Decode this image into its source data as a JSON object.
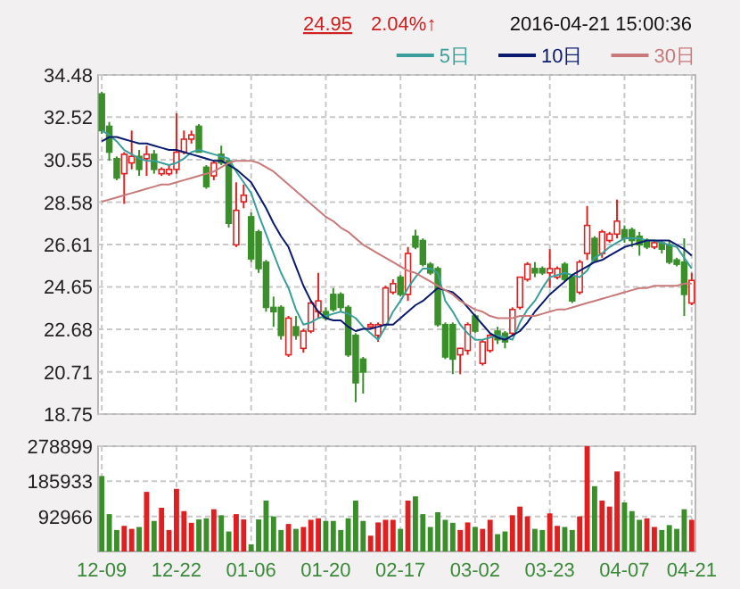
{
  "chart_data": [
    {
      "type": "candlestick",
      "annotations": [
        "24.95",
        "2.04%↑",
        "2016-04-21 15:00:36"
      ],
      "categories": [
        null,
        null,
        null,
        null,
        null,
        null,
        null,
        null,
        null,
        null,
        null,
        null,
        null,
        null,
        null,
        null,
        null,
        null,
        null,
        null,
        null,
        null,
        null,
        null,
        null,
        null,
        null,
        null,
        null,
        null,
        null,
        null,
        null,
        null,
        null,
        null,
        null,
        null,
        null,
        null,
        null,
        null,
        null,
        null,
        null,
        null,
        null,
        null,
        null,
        null,
        null,
        null,
        null,
        null,
        null,
        null,
        null,
        null,
        null,
        null,
        null,
        null,
        null,
        null,
        null,
        null,
        null,
        null,
        null,
        null,
        null,
        null,
        null,
        null,
        null,
        null,
        null,
        null,
        null,
        null
      ],
      "ohlc": [
        [
          33.6,
          33.7,
          31.75,
          31.9
        ],
        [
          32.1,
          32.3,
          30.5,
          30.9
        ],
        [
          30.6,
          30.7,
          29.6,
          29.7
        ],
        [
          29.9,
          30.9,
          28.5,
          30.8
        ],
        [
          30.4,
          31.9,
          30.1,
          30.7
        ],
        [
          30.7,
          31.0,
          29.8,
          30.1
        ],
        [
          30.6,
          31.2,
          29.8,
          30.8
        ],
        [
          30.8,
          31.0,
          29.9,
          30.1
        ],
        [
          29.9,
          30.2,
          29.8,
          30.1
        ],
        [
          29.9,
          30.3,
          29.8,
          30.1
        ],
        [
          30.1,
          32.7,
          29.9,
          30.9
        ],
        [
          30.9,
          31.9,
          30.8,
          31.5
        ],
        [
          31.5,
          31.9,
          31.3,
          31.7
        ],
        [
          32.1,
          32.2,
          30.9,
          30.9
        ],
        [
          30.2,
          30.3,
          29.2,
          29.3
        ],
        [
          29.8,
          30.5,
          29.6,
          30.4
        ],
        [
          30.8,
          31.2,
          30.3,
          30.4
        ],
        [
          30.5,
          30.6,
          27.4,
          27.6
        ],
        [
          26.6,
          29.5,
          26.5,
          28.2
        ],
        [
          28.6,
          29.4,
          28.3,
          28.9
        ],
        [
          27.9,
          28.1,
          25.8,
          25.95
        ],
        [
          27.2,
          27.3,
          25.3,
          25.5
        ],
        [
          25.8,
          25.9,
          23.5,
          23.7
        ],
        [
          23.7,
          24.2,
          22.8,
          23.5
        ],
        [
          23.7,
          23.8,
          22.2,
          22.4
        ],
        [
          21.5,
          23.3,
          21.4,
          23.2
        ],
        [
          22.8,
          23.3,
          22.2,
          22.4
        ],
        [
          21.8,
          22.7,
          21.6,
          22.6
        ],
        [
          22.6,
          24.0,
          22.5,
          23.9
        ],
        [
          23.5,
          25.3,
          23.2,
          24.0
        ],
        [
          23.5,
          23.7,
          23.1,
          23.2
        ],
        [
          24.3,
          24.6,
          23.5,
          23.6
        ],
        [
          24.3,
          24.4,
          23.5,
          23.7
        ],
        [
          23.7,
          23.8,
          21.4,
          21.5
        ],
        [
          22.4,
          22.5,
          19.3,
          20.2
        ],
        [
          21.3,
          21.4,
          19.7,
          20.7
        ],
        [
          22.8,
          23.0,
          22.7,
          22.9
        ],
        [
          22.4,
          23.0,
          22.1,
          22.9
        ],
        [
          22.9,
          24.7,
          22.8,
          24.6
        ],
        [
          24.4,
          25.0,
          24.3,
          24.8
        ],
        [
          25.1,
          25.2,
          24.2,
          24.3
        ],
        [
          24.3,
          26.5,
          24.0,
          26.2
        ],
        [
          27.0,
          27.3,
          26.4,
          26.5
        ],
        [
          26.8,
          26.9,
          25.6,
          25.7
        ],
        [
          25.7,
          25.8,
          25.2,
          25.3
        ],
        [
          25.5,
          25.6,
          22.8,
          22.9
        ],
        [
          22.9,
          23.0,
          21.3,
          21.4
        ],
        [
          22.9,
          23.0,
          20.6,
          21.3
        ],
        [
          21.5,
          21.8,
          20.6,
          21.8
        ],
        [
          21.7,
          23.0,
          21.5,
          22.9
        ],
        [
          23.3,
          23.4,
          22.5,
          22.6
        ],
        [
          21.1,
          22.2,
          21.0,
          22.1
        ],
        [
          21.7,
          22.5,
          21.6,
          22.4
        ],
        [
          22.6,
          22.8,
          22.0,
          22.2
        ],
        [
          22.5,
          22.6,
          21.8,
          22.1
        ],
        [
          22.5,
          23.7,
          22.4,
          23.6
        ],
        [
          23.7,
          25.1,
          23.6,
          25.1
        ],
        [
          25.0,
          25.8,
          24.9,
          25.7
        ],
        [
          25.5,
          25.8,
          25.1,
          25.3
        ],
        [
          25.5,
          25.6,
          25.2,
          25.3
        ],
        [
          25.3,
          26.4,
          24.6,
          25.5
        ],
        [
          25.1,
          25.6,
          25.0,
          25.5
        ],
        [
          25.7,
          25.8,
          24.9,
          25.0
        ],
        [
          25.1,
          25.2,
          23.9,
          24.0
        ],
        [
          24.4,
          25.9,
          24.3,
          25.8
        ],
        [
          26.2,
          28.4,
          25.9,
          27.5
        ],
        [
          26.9,
          27.0,
          25.8,
          25.9
        ],
        [
          26.2,
          27.3,
          26.0,
          27.2
        ],
        [
          26.8,
          27.2,
          26.7,
          27.1
        ],
        [
          27.1,
          28.7,
          26.9,
          27.7
        ],
        [
          27.3,
          27.5,
          26.7,
          26.9
        ],
        [
          27.3,
          27.4,
          26.5,
          26.8
        ],
        [
          27.0,
          27.2,
          26.1,
          26.6
        ],
        [
          26.8,
          26.9,
          26.4,
          26.5
        ],
        [
          26.5,
          26.8,
          26.4,
          26.7
        ],
        [
          26.7,
          26.8,
          26.2,
          26.4
        ],
        [
          26.6,
          26.8,
          25.7,
          25.8
        ],
        [
          25.9,
          26.0,
          25.6,
          25.7
        ],
        [
          25.8,
          26.9,
          23.3,
          24.3
        ],
        [
          23.9,
          25.3,
          23.8,
          24.95
        ]
      ],
      "colors": [
        "#3a8f2a",
        "#3a8f2a",
        "#3a8f2a",
        "#e02020",
        "#e02020",
        "#3a8f2a",
        "#e02020",
        "#3a8f2a",
        "#e02020",
        "#e02020",
        "#e02020",
        "#e02020",
        "#e02020",
        "#3a8f2a",
        "#3a8f2a",
        "#e02020",
        "#3a8f2a",
        "#3a8f2a",
        "#e02020",
        "#e02020",
        "#3a8f2a",
        "#3a8f2a",
        "#3a8f2a",
        "#3a8f2a",
        "#3a8f2a",
        "#e02020",
        "#3a8f2a",
        "#e02020",
        "#e02020",
        "#e02020",
        "#3a8f2a",
        "#3a8f2a",
        "#3a8f2a",
        "#3a8f2a",
        "#3a8f2a",
        "#3a8f2a",
        "#e02020",
        "#e02020",
        "#e02020",
        "#e02020",
        "#3a8f2a",
        "#e02020",
        "#3a8f2a",
        "#3a8f2a",
        "#3a8f2a",
        "#3a8f2a",
        "#3a8f2a",
        "#3a8f2a",
        "#e02020",
        "#e02020",
        "#3a8f2a",
        "#e02020",
        "#e02020",
        "#3a8f2a",
        "#3a8f2a",
        "#e02020",
        "#e02020",
        "#e02020",
        "#3a8f2a",
        "#3a8f2a",
        "#e02020",
        "#e02020",
        "#3a8f2a",
        "#3a8f2a",
        "#e02020",
        "#e02020",
        "#3a8f2a",
        "#e02020",
        "#e02020",
        "#e02020",
        "#3a8f2a",
        "#3a8f2a",
        "#3a8f2a",
        "#3a8f2a",
        "#e02020",
        "#3a8f2a",
        "#3a8f2a",
        "#3a8f2a",
        "#3a8f2a",
        "#e02020"
      ],
      "series": [
        {
          "name": "5日",
          "type": "line",
          "color": "#3a9e9a",
          "values": [
            31.9,
            31.7,
            31.4,
            31.0,
            30.8,
            30.6,
            30.5,
            30.5,
            30.4,
            30.3,
            30.4,
            30.6,
            30.9,
            31.0,
            30.9,
            30.8,
            30.7,
            30.6,
            30.0,
            29.5,
            29.0,
            28.0,
            27.1,
            26.2,
            25.3,
            24.6,
            23.6,
            22.9,
            23.0,
            23.2,
            23.3,
            23.4,
            23.5,
            23.4,
            23.2,
            22.8,
            22.5,
            22.2,
            22.8,
            23.5,
            24.0,
            24.6,
            25.1,
            25.5,
            25.5,
            25.3,
            24.0,
            23.5,
            22.9,
            22.5,
            22.2,
            22.2,
            22.3,
            22.4,
            22.3,
            22.2,
            23.0,
            23.6,
            24.0,
            24.6,
            25.1,
            25.2,
            25.3,
            25.2,
            25.1,
            25.4,
            26.0,
            26.2,
            26.5,
            26.7,
            26.9,
            26.9,
            26.9,
            26.8,
            26.8,
            26.7,
            26.6,
            26.5,
            26.0,
            25.5
          ]
        },
        {
          "name": "10日",
          "type": "line",
          "color": "#0a1a6e",
          "values": [
            31.4,
            31.6,
            31.6,
            31.5,
            31.4,
            31.3,
            31.3,
            31.2,
            31.1,
            31.0,
            31.0,
            30.9,
            30.8,
            30.7,
            30.6,
            30.5,
            30.5,
            30.3,
            30.1,
            29.8,
            29.5,
            28.9,
            28.3,
            27.6,
            27.0,
            26.5,
            25.6,
            24.7,
            24.0,
            23.5,
            23.2,
            23.1,
            23.1,
            22.8,
            22.6,
            22.7,
            22.7,
            22.8,
            22.9,
            22.9,
            23.2,
            23.5,
            23.8,
            24.0,
            24.3,
            24.6,
            24.5,
            24.4,
            24.1,
            23.7,
            23.3,
            22.9,
            22.5,
            22.3,
            22.2,
            22.4,
            22.6,
            23.0,
            23.5,
            23.9,
            24.3,
            24.6,
            24.9,
            25.2,
            25.4,
            25.6,
            25.8,
            25.9,
            26.1,
            26.3,
            26.5,
            26.6,
            26.7,
            26.8,
            26.8,
            26.8,
            26.8,
            26.6,
            26.4,
            26.1
          ]
        },
        {
          "name": "30日",
          "type": "line",
          "color": "#c87a7a",
          "values": [
            28.6,
            28.7,
            28.8,
            28.9,
            29.0,
            29.1,
            29.2,
            29.3,
            29.4,
            29.4,
            29.5,
            29.6,
            29.7,
            29.8,
            29.9,
            30.0,
            30.2,
            30.4,
            30.5,
            30.5,
            30.5,
            30.4,
            30.2,
            30.0,
            29.7,
            29.4,
            29.1,
            28.8,
            28.5,
            28.2,
            27.9,
            27.7,
            27.4,
            27.2,
            26.9,
            26.6,
            26.4,
            26.2,
            26.0,
            25.8,
            25.6,
            25.4,
            25.3,
            25.1,
            24.9,
            24.7,
            24.5,
            24.3,
            24.0,
            23.8,
            23.6,
            23.5,
            23.3,
            23.2,
            23.2,
            23.2,
            23.3,
            23.3,
            23.3,
            23.4,
            23.5,
            23.6,
            23.6,
            23.7,
            23.8,
            23.9,
            24.0,
            24.1,
            24.2,
            24.3,
            24.4,
            24.5,
            24.6,
            24.6,
            24.7,
            24.7,
            24.7,
            24.7,
            24.8,
            24.8
          ]
        }
      ],
      "ylim": [
        18.75,
        34.48
      ],
      "yticks": [
        34.48,
        32.52,
        30.55,
        28.58,
        26.61,
        24.65,
        22.68,
        20.71,
        18.75
      ],
      "grid": true,
      "legend": "top right"
    },
    {
      "type": "bar",
      "categories": [
        "12-09",
        null,
        null,
        null,
        null,
        null,
        null,
        null,
        null,
        null,
        "12-22",
        null,
        null,
        null,
        null,
        null,
        null,
        null,
        null,
        null,
        "01-06",
        null,
        null,
        null,
        null,
        null,
        null,
        null,
        null,
        null,
        "01-20",
        null,
        null,
        null,
        null,
        null,
        null,
        null,
        null,
        null,
        "02-17",
        null,
        null,
        null,
        null,
        null,
        null,
        null,
        null,
        null,
        "03-02",
        null,
        null,
        null,
        null,
        null,
        null,
        null,
        null,
        null,
        "03-23",
        null,
        null,
        null,
        null,
        null,
        null,
        null,
        null,
        null,
        "04-07",
        null,
        null,
        null,
        null,
        null,
        null,
        null,
        null,
        "04-21"
      ],
      "values": [
        200000,
        99000,
        57000,
        68000,
        60000,
        65000,
        158000,
        81000,
        116000,
        57000,
        166000,
        107000,
        76000,
        85000,
        88000,
        112000,
        96000,
        53000,
        99000,
        85000,
        19000,
        85000,
        135000,
        93000,
        57000,
        73000,
        60000,
        65000,
        84000,
        88000,
        81000,
        81000,
        57000,
        88000,
        135000,
        81000,
        42000,
        77000,
        84000,
        84000,
        60000,
        135000,
        146000,
        99000,
        65000,
        104000,
        84000,
        76000,
        57000,
        77000,
        65000,
        60000,
        84000,
        46000,
        53000,
        96000,
        119000,
        93000,
        60000,
        57000,
        101000,
        68000,
        65000,
        57000,
        93000,
        278899,
        173000,
        135000,
        119000,
        212000,
        130000,
        107000,
        84000,
        88000,
        65000,
        57000,
        70000,
        60000,
        112000,
        84000
      ],
      "colors": [
        "#3a8f2a",
        "#3a8f2a",
        "#3a8f2a",
        "#e02020",
        "#e02020",
        "#3a8f2a",
        "#e02020",
        "#3a8f2a",
        "#e02020",
        "#e02020",
        "#e02020",
        "#e02020",
        "#e02020",
        "#3a8f2a",
        "#3a8f2a",
        "#e02020",
        "#3a8f2a",
        "#3a8f2a",
        "#e02020",
        "#e02020",
        "#3a8f2a",
        "#3a8f2a",
        "#3a8f2a",
        "#3a8f2a",
        "#3a8f2a",
        "#e02020",
        "#3a8f2a",
        "#e02020",
        "#e02020",
        "#e02020",
        "#3a8f2a",
        "#3a8f2a",
        "#3a8f2a",
        "#3a8f2a",
        "#3a8f2a",
        "#3a8f2a",
        "#e02020",
        "#e02020",
        "#e02020",
        "#e02020",
        "#3a8f2a",
        "#e02020",
        "#3a8f2a",
        "#3a8f2a",
        "#3a8f2a",
        "#3a8f2a",
        "#3a8f2a",
        "#3a8f2a",
        "#e02020",
        "#e02020",
        "#3a8f2a",
        "#e02020",
        "#e02020",
        "#3a8f2a",
        "#3a8f2a",
        "#e02020",
        "#e02020",
        "#e02020",
        "#3a8f2a",
        "#3a8f2a",
        "#e02020",
        "#e02020",
        "#3a8f2a",
        "#3a8f2a",
        "#e02020",
        "#e02020",
        "#3a8f2a",
        "#e02020",
        "#e02020",
        "#e02020",
        "#3a8f2a",
        "#3a8f2a",
        "#3a8f2a",
        "#e02020",
        "#e02020",
        "#3a8f2a",
        "#3a8f2a",
        "#3a8f2a",
        "#3a8f2a",
        "#e02020"
      ],
      "ylim": [
        0,
        278899
      ],
      "yticks": [
        92966,
        185933,
        278899
      ],
      "grid": true
    }
  ]
}
